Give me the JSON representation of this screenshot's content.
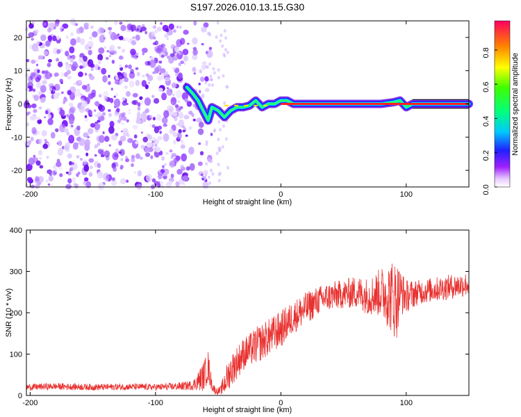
{
  "title": "S197.2026.010.13.15.G30",
  "chart_data": [
    {
      "type": "heatmap",
      "xlabel": "Height of straight line (km)",
      "ylabel": "Frequency (Hz)",
      "xlim": [
        -203,
        150
      ],
      "ylim": [
        -25,
        25
      ],
      "xticks": [
        -200,
        -100,
        0,
        100
      ],
      "xtick_labels": [
        "-200",
        "-100",
        "0",
        "100"
      ],
      "yticks": [
        -20,
        -10,
        0,
        10,
        20
      ],
      "ytick_labels": [
        "-20",
        "-10",
        "0",
        "10",
        "20"
      ],
      "description_series": {
        "noise_region_x": [
          -203,
          -55
        ],
        "tracked_line": {
          "x": [
            -75,
            -70,
            -66,
            -62,
            -58,
            -55,
            -50,
            -45,
            -40,
            -35,
            -30,
            -25,
            -20,
            -15,
            -10,
            -5,
            0,
            5,
            10,
            20,
            40,
            60,
            80,
            90,
            95,
            100,
            105,
            150
          ],
          "frequency": [
            5,
            3,
            1,
            -2,
            -5,
            -1,
            -2,
            -4,
            -2,
            -1,
            -1,
            -0.5,
            1,
            -1,
            0,
            0,
            1,
            1,
            0,
            0,
            0,
            0,
            0,
            0.5,
            1,
            -1,
            0,
            0
          ]
        }
      },
      "colorbar": {
        "label": "Normalized spectral amplitude",
        "ticks": [
          0.0,
          0.2,
          0.4,
          0.6,
          0.8
        ],
        "tick_labels": [
          "0.0",
          "0.2",
          "0.4",
          "0.6",
          "0.8"
        ],
        "range": [
          0,
          0.97
        ]
      }
    },
    {
      "type": "line",
      "xlabel": "Height of straight line (km)",
      "ylabel": "SNR (10 * v/v)",
      "xlim": [
        -203,
        150
      ],
      "ylim": [
        0,
        400
      ],
      "xticks": [
        -200,
        -100,
        0,
        100
      ],
      "xtick_labels": [
        "-200",
        "-100",
        "0",
        "100"
      ],
      "yticks": [
        0,
        100,
        200,
        300,
        400
      ],
      "ytick_labels": [
        "0",
        "100",
        "200",
        "300",
        "400"
      ],
      "series": [
        {
          "name": "SNR",
          "color": "#e8302e",
          "envelope_x": [
            -203,
            -180,
            -150,
            -120,
            -100,
            -80,
            -70,
            -62,
            -58,
            -55,
            -52,
            -48,
            -45,
            -40,
            -35,
            -30,
            -25,
            -20,
            -15,
            -10,
            -5,
            0,
            10,
            20,
            30,
            40,
            50,
            60,
            70,
            80,
            88,
            92,
            95,
            100,
            110,
            120,
            130,
            140,
            150
          ],
          "mean_values": [
            20,
            22,
            20,
            21,
            20,
            22,
            25,
            45,
            70,
            25,
            10,
            12,
            30,
            60,
            80,
            100,
            110,
            120,
            130,
            140,
            150,
            160,
            190,
            210,
            230,
            240,
            245,
            250,
            240,
            250,
            240,
            230,
            250,
            240,
            250,
            255,
            260,
            265,
            270
          ],
          "noise_amplitude": [
            8,
            8,
            8,
            8,
            8,
            10,
            12,
            35,
            40,
            15,
            8,
            10,
            30,
            40,
            40,
            40,
            40,
            45,
            45,
            45,
            45,
            45,
            40,
            40,
            35,
            35,
            35,
            40,
            45,
            60,
            90,
            100,
            60,
            40,
            30,
            30,
            30,
            30,
            30
          ]
        }
      ]
    }
  ],
  "colors": {
    "line": "#e8302e",
    "frame": "#000000"
  }
}
